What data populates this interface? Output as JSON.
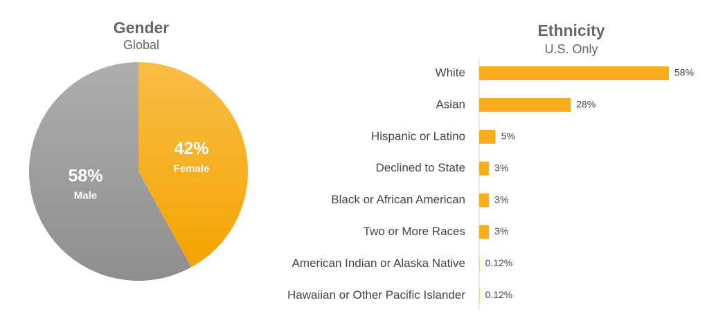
{
  "chart_data": [
    {
      "type": "pie",
      "title": "Gender",
      "subtitle": "Global",
      "categories": [
        "Female",
        "Male"
      ],
      "values": [
        42,
        58
      ],
      "value_labels": [
        "42%",
        "58%"
      ],
      "colors": [
        "#f5a400",
        "#8e8e8e"
      ]
    },
    {
      "type": "bar",
      "orientation": "horizontal",
      "title": "Ethnicity",
      "subtitle": "U.S. Only",
      "categories": [
        "White",
        "Asian",
        "Hispanic or Latino",
        "Declined to State",
        "Black or African American",
        "Two or More Races",
        "American Indian or Alaska Native",
        "Hawaiian or Other Pacific Islander"
      ],
      "values": [
        58,
        28,
        5,
        3,
        3,
        3,
        0.12,
        0.12
      ],
      "value_labels": [
        "58%",
        "28%",
        "5%",
        "3%",
        "3%",
        "3%",
        "0.12%",
        "0.12%"
      ],
      "color": "#f6ae1e"
    }
  ]
}
